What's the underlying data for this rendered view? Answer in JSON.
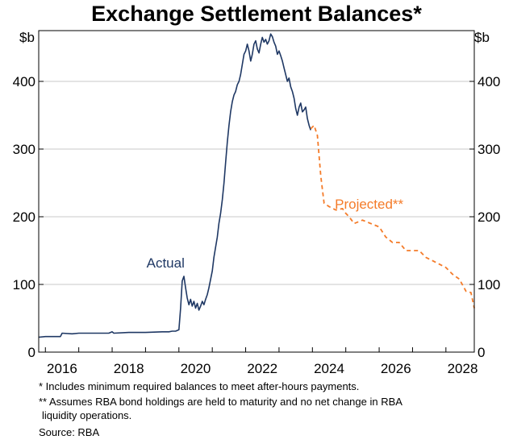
{
  "title": "Exchange Settlement Balances*",
  "footnotes": {
    "note1": "* Includes minimum required balances to meet after-hours payments.",
    "note2": "** Assumes RBA bond holdings are held to maturity and no net change in RBA",
    "note2_cont": "liquidity operations.",
    "source": "Source: RBA"
  },
  "colors": {
    "actual": "#1f3864",
    "projected": "#f47b29",
    "grid": "#c8c8c8",
    "axis": "#000000"
  },
  "chart_data": {
    "type": "line",
    "title": "Exchange Settlement Balances*",
    "y_unit_left": "$b",
    "y_unit_right": "$b",
    "ylim": [
      0,
      475
    ],
    "y_ticks": [
      0,
      100,
      200,
      300,
      400
    ],
    "xlim": [
      2015.8,
      2028.85
    ],
    "x_ticks": [
      "2016",
      "2018",
      "2020",
      "2022",
      "2024",
      "2026",
      "2028"
    ],
    "grid": true,
    "annotations": [
      {
        "text": "Actual",
        "series": "actual",
        "x": 2019.6,
        "y": 125
      },
      {
        "text": "Projected**",
        "series": "projected",
        "x": 2025.7,
        "y": 212
      }
    ],
    "series": [
      {
        "name": "Actual",
        "style": "solid",
        "points": [
          [
            2015.8,
            22
          ],
          [
            2016.0,
            23
          ],
          [
            2016.3,
            23
          ],
          [
            2016.45,
            23
          ],
          [
            2016.5,
            28
          ],
          [
            2016.8,
            27
          ],
          [
            2017.0,
            28
          ],
          [
            2017.5,
            28
          ],
          [
            2017.9,
            28
          ],
          [
            2018.0,
            30
          ],
          [
            2018.05,
            28
          ],
          [
            2018.5,
            29
          ],
          [
            2019.0,
            29
          ],
          [
            2019.5,
            30
          ],
          [
            2019.7,
            30
          ],
          [
            2019.8,
            31
          ],
          [
            2019.9,
            31
          ],
          [
            2020.0,
            33
          ],
          [
            2020.05,
            65
          ],
          [
            2020.1,
            105
          ],
          [
            2020.15,
            112
          ],
          [
            2020.2,
            95
          ],
          [
            2020.25,
            80
          ],
          [
            2020.3,
            70
          ],
          [
            2020.35,
            78
          ],
          [
            2020.4,
            68
          ],
          [
            2020.45,
            75
          ],
          [
            2020.5,
            65
          ],
          [
            2020.55,
            72
          ],
          [
            2020.6,
            62
          ],
          [
            2020.65,
            68
          ],
          [
            2020.7,
            75
          ],
          [
            2020.75,
            70
          ],
          [
            2020.8,
            78
          ],
          [
            2020.85,
            85
          ],
          [
            2020.9,
            95
          ],
          [
            2021.0,
            120
          ],
          [
            2021.05,
            140
          ],
          [
            2021.1,
            155
          ],
          [
            2021.15,
            170
          ],
          [
            2021.2,
            190
          ],
          [
            2021.25,
            205
          ],
          [
            2021.3,
            225
          ],
          [
            2021.35,
            250
          ],
          [
            2021.4,
            280
          ],
          [
            2021.45,
            310
          ],
          [
            2021.5,
            335
          ],
          [
            2021.55,
            355
          ],
          [
            2021.6,
            370
          ],
          [
            2021.65,
            380
          ],
          [
            2021.7,
            385
          ],
          [
            2021.75,
            395
          ],
          [
            2021.8,
            400
          ],
          [
            2021.85,
            410
          ],
          [
            2021.9,
            425
          ],
          [
            2021.95,
            440
          ],
          [
            2022.0,
            445
          ],
          [
            2022.05,
            455
          ],
          [
            2022.1,
            445
          ],
          [
            2022.15,
            430
          ],
          [
            2022.2,
            440
          ],
          [
            2022.25,
            455
          ],
          [
            2022.3,
            460
          ],
          [
            2022.35,
            448
          ],
          [
            2022.4,
            442
          ],
          [
            2022.45,
            455
          ],
          [
            2022.5,
            465
          ],
          [
            2022.55,
            458
          ],
          [
            2022.6,
            462
          ],
          [
            2022.65,
            455
          ],
          [
            2022.7,
            460
          ],
          [
            2022.75,
            470
          ],
          [
            2022.8,
            466
          ],
          [
            2022.85,
            458
          ],
          [
            2022.9,
            452
          ],
          [
            2022.95,
            440
          ],
          [
            2023.0,
            445
          ],
          [
            2023.05,
            438
          ],
          [
            2023.1,
            430
          ],
          [
            2023.15,
            420
          ],
          [
            2023.2,
            410
          ],
          [
            2023.25,
            400
          ],
          [
            2023.3,
            405
          ],
          [
            2023.35,
            392
          ],
          [
            2023.4,
            385
          ],
          [
            2023.45,
            375
          ],
          [
            2023.5,
            360
          ],
          [
            2023.55,
            350
          ],
          [
            2023.6,
            362
          ],
          [
            2023.65,
            368
          ],
          [
            2023.7,
            355
          ],
          [
            2023.75,
            358
          ],
          [
            2023.8,
            362
          ],
          [
            2023.85,
            345
          ],
          [
            2023.9,
            335
          ],
          [
            2023.95,
            328
          ]
        ]
      },
      {
        "name": "Projected**",
        "style": "dashed",
        "points": [
          [
            2023.95,
            330
          ],
          [
            2024.05,
            335
          ],
          [
            2024.15,
            320
          ],
          [
            2024.25,
            260
          ],
          [
            2024.35,
            220
          ],
          [
            2024.5,
            215
          ],
          [
            2024.7,
            210
          ],
          [
            2024.9,
            212
          ],
          [
            2025.0,
            205
          ],
          [
            2025.1,
            200
          ],
          [
            2025.25,
            190
          ],
          [
            2025.5,
            195
          ],
          [
            2025.75,
            190
          ],
          [
            2026.0,
            185
          ],
          [
            2026.2,
            170
          ],
          [
            2026.4,
            162
          ],
          [
            2026.6,
            162
          ],
          [
            2026.8,
            150
          ],
          [
            2027.0,
            150
          ],
          [
            2027.2,
            150
          ],
          [
            2027.4,
            140
          ],
          [
            2027.6,
            135
          ],
          [
            2027.8,
            130
          ],
          [
            2028.0,
            125
          ],
          [
            2028.2,
            115
          ],
          [
            2028.4,
            108
          ],
          [
            2028.6,
            90
          ],
          [
            2028.75,
            88
          ],
          [
            2028.85,
            65
          ]
        ]
      }
    ]
  }
}
